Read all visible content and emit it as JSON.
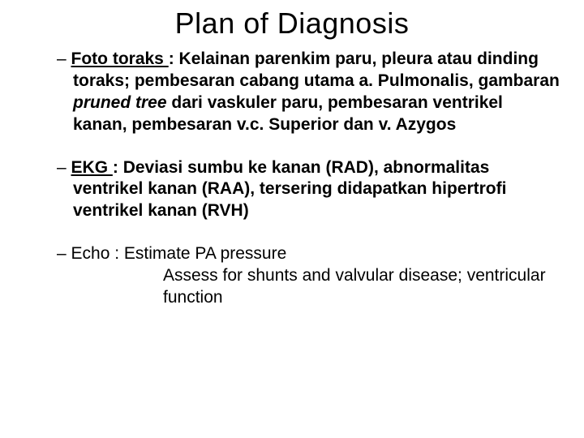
{
  "title": "Plan of Diagnosis",
  "items": [
    {
      "label": "Foto toraks ",
      "sep": ": ",
      "body_a": "Kelainan parenkim paru, pleura atau dinding toraks; pembesaran cabang utama a. Pulmonalis, gambaran ",
      "italic": "pruned tree",
      "body_b": " dari vaskuler paru, pembesaran ventrikel kanan, pembesaran v.c. Superior dan v. Azygos"
    },
    {
      "label": "EKG ",
      "sep": ": ",
      "body_a": "Deviasi sumbu ke kanan (RAD), abnormalitas ventrikel kanan (RAA), tersering didapatkan hipertrofi ventrikel kanan (RVH)",
      "italic": "",
      "body_b": ""
    },
    {
      "label": "Echo",
      "sep": "   : ",
      "body_a": "Estimate PA pressure",
      "cont": "Assess for shunts and valvular disease; ventricular function"
    }
  ]
}
